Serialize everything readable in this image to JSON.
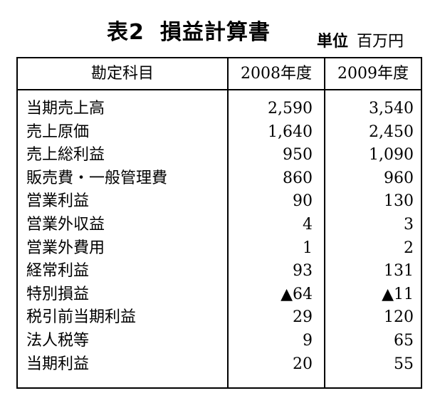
{
  "header": {
    "title_prefix": "表2",
    "title_main": "損益計算書",
    "unit_label": "単位",
    "unit_value": "百万円"
  },
  "table": {
    "columns": [
      "勘定科目",
      "2008年度",
      "2009年度"
    ],
    "rows": [
      {
        "item": "当期売上高",
        "y2008": "2,590",
        "y2009": "3,540"
      },
      {
        "item": "売上原価",
        "y2008": "1,640",
        "y2009": "2,450"
      },
      {
        "item": "売上総利益",
        "y2008": "950",
        "y2009": "1,090"
      },
      {
        "item": "販売費・一般管理費",
        "y2008": "860",
        "y2009": "960"
      },
      {
        "item": "営業利益",
        "y2008": "90",
        "y2009": "130"
      },
      {
        "item": "営業外収益",
        "y2008": "4",
        "y2009": "3"
      },
      {
        "item": "営業外費用",
        "y2008": "1",
        "y2009": "2"
      },
      {
        "item": "経常利益",
        "y2008": "93",
        "y2009": "131"
      },
      {
        "item": "特別損益",
        "y2008": "▲64",
        "y2009": "▲11"
      },
      {
        "item": "税引前当期利益",
        "y2008": "29",
        "y2009": "120"
      },
      {
        "item": "法人税等",
        "y2008": "9",
        "y2009": "65"
      },
      {
        "item": "当期利益",
        "y2008": "20",
        "y2009": "55"
      }
    ]
  }
}
